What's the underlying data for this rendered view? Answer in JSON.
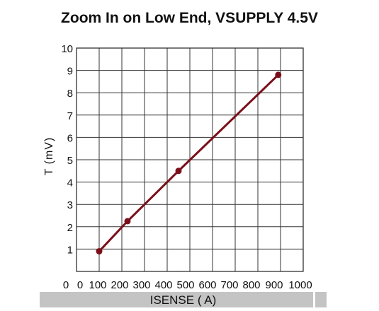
{
  "chart_data": {
    "type": "line",
    "title": "Zoom In on Low End, VSUPPLY 4.5V",
    "xlabel": "ISENSE (  A)",
    "ylabel": "T  (mV)",
    "xlim": [
      0,
      1000
    ],
    "ylim": [
      0,
      10
    ],
    "x_ticks": [
      "0",
      "0",
      "100",
      "200",
      "300",
      "400",
      "500",
      "600",
      "700",
      "800",
      "900",
      "1000"
    ],
    "y_ticks": [
      "1",
      "2",
      "3",
      "4",
      "5",
      "6",
      "7",
      "8",
      "9",
      "10"
    ],
    "grid": true,
    "series": [
      {
        "color": "#7a0f1a",
        "x": [
          100,
          225,
          450,
          890
        ],
        "y": [
          0.9,
          2.25,
          4.5,
          8.8
        ]
      }
    ]
  }
}
